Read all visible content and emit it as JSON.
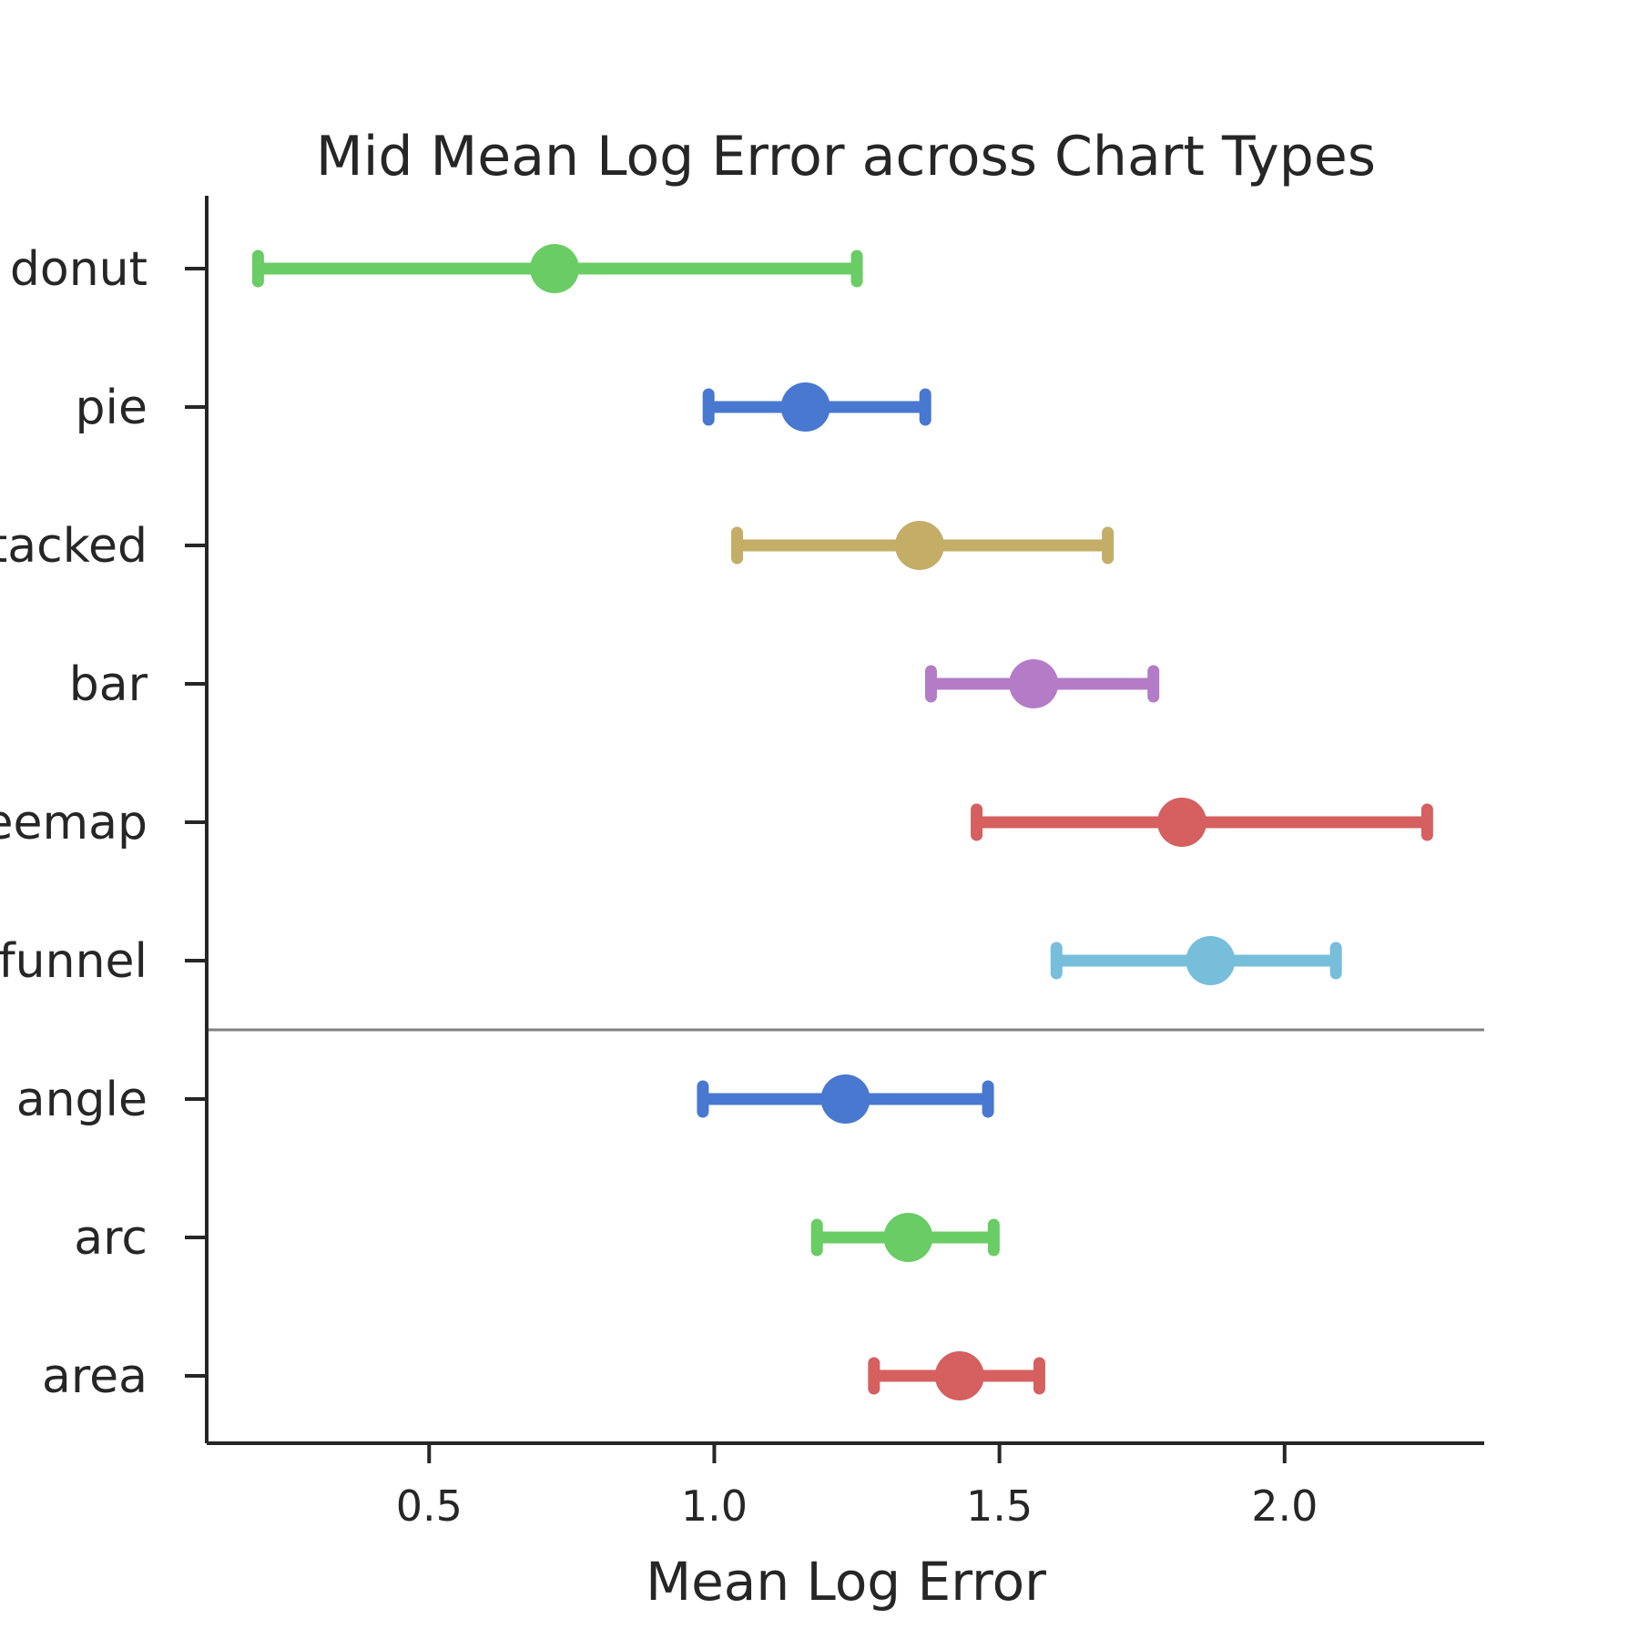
{
  "chart_data": {
    "type": "scatter",
    "title": "Mid Mean Log Error across Chart Types",
    "xlabel": "Mean Log Error",
    "ylabel": "",
    "xlim": [
      0.11,
      2.35
    ],
    "xticks": [
      0.5,
      1.0,
      1.5,
      2.0
    ],
    "xtick_labels": [
      "0.5",
      "1.0",
      "1.5",
      "2.0"
    ],
    "grid": false,
    "legend": "none",
    "categories": [
      "donut",
      "pie",
      "stacked",
      "bar",
      "treemap",
      "funnel",
      "angle",
      "arc",
      "area"
    ],
    "category_labels_visible": [
      "donut",
      "pie",
      "tacked",
      "bar",
      "eemap",
      "funnel",
      "angle",
      "arc",
      "area"
    ],
    "separator_after_category": "funnel",
    "series": [
      {
        "values": [
          0.72,
          1.16,
          1.36,
          1.56,
          1.82,
          1.87,
          1.23,
          1.34,
          1.43
        ]
      }
    ],
    "ci_low": [
      0.2,
      0.99,
      1.04,
      1.38,
      1.46,
      1.6,
      0.98,
      1.18,
      1.28
    ],
    "ci_high": [
      1.25,
      1.37,
      1.69,
      1.77,
      2.25,
      2.09,
      1.48,
      1.49,
      1.57
    ],
    "colors": [
      "#6acc64",
      "#4878d0",
      "#c4ad66",
      "#b47cc7",
      "#d65f5f",
      "#77bedb",
      "#4878d0",
      "#6acc64",
      "#d65f5f"
    ],
    "separator_color": "#808080",
    "axis_color": "#262626"
  }
}
